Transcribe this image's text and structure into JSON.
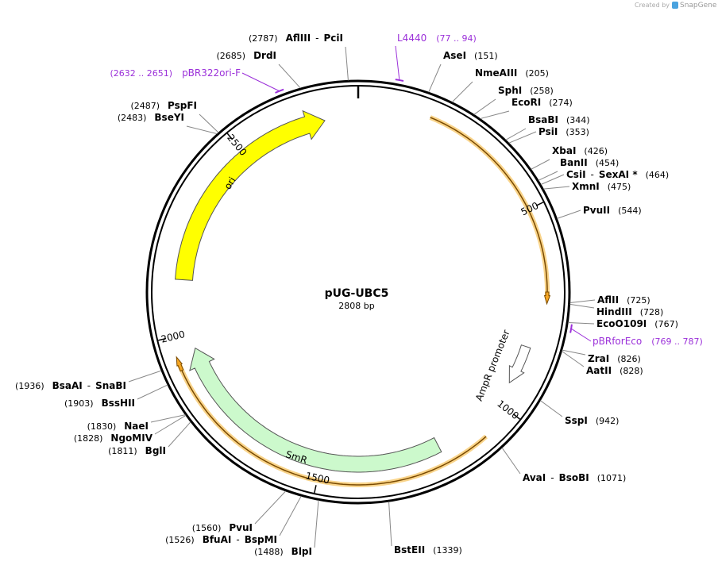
{
  "credit": {
    "prefix": "Created by",
    "brand": "SnapGene"
  },
  "plasmid": {
    "name": "pUG-UBC5",
    "length": "2808 bp"
  },
  "ticks": [
    "500",
    "1000",
    "1500",
    "2000",
    "2500"
  ],
  "features": {
    "ori": "ori",
    "smr": "SmR",
    "promoter": "AmpR promoter"
  },
  "primers": [
    {
      "name": "L4440",
      "range": "(77 .. 94)"
    },
    {
      "name": "pBR322ori-F",
      "range": "(2632 .. 2651)"
    },
    {
      "name": "pBRforEco",
      "range": "(769 .. 787)"
    }
  ],
  "sites": [
    {
      "names": [
        "AseI"
      ],
      "position": "(151)"
    },
    {
      "names": [
        "NmeAIII"
      ],
      "position": "(205)"
    },
    {
      "names": [
        "SphI"
      ],
      "position": "(258)"
    },
    {
      "names": [
        "EcoRI"
      ],
      "position": "(274)"
    },
    {
      "names": [
        "BsaBI"
      ],
      "position": "(344)"
    },
    {
      "names": [
        "PsiI"
      ],
      "position": "(353)"
    },
    {
      "names": [
        "XbaI"
      ],
      "position": "(426)"
    },
    {
      "names": [
        "BanII"
      ],
      "position": "(454)"
    },
    {
      "names": [
        "CsiI",
        "-",
        "SexAI *"
      ],
      "position": "(464)"
    },
    {
      "names": [
        "XmnI"
      ],
      "position": "(475)"
    },
    {
      "names": [
        "PvuII"
      ],
      "position": "(544)"
    },
    {
      "names": [
        "AflII"
      ],
      "position": "(725)"
    },
    {
      "names": [
        "HindIII"
      ],
      "position": "(728)"
    },
    {
      "names": [
        "EcoO109I"
      ],
      "position": "(767)"
    },
    {
      "names": [
        "ZraI"
      ],
      "position": "(826)"
    },
    {
      "names": [
        "AatII"
      ],
      "position": "(828)"
    },
    {
      "names": [
        "SspI"
      ],
      "position": "(942)"
    },
    {
      "names": [
        "AvaI",
        "-",
        "BsoBI"
      ],
      "position": "(1071)"
    },
    {
      "names": [
        "BstEII"
      ],
      "position": "(1339)"
    },
    {
      "names": [
        "BlpI"
      ],
      "position": "(1488)"
    },
    {
      "names": [
        "BfuAI",
        "-",
        "BspMI"
      ],
      "position": "(1526)"
    },
    {
      "names": [
        "PvuI"
      ],
      "position": "(1560)"
    },
    {
      "names": [
        "BglI"
      ],
      "position": "(1811)"
    },
    {
      "names": [
        "NgoMIV"
      ],
      "position": "(1828)"
    },
    {
      "names": [
        "NaeI"
      ],
      "position": "(1830)"
    },
    {
      "names": [
        "BssHII"
      ],
      "position": "(1903)"
    },
    {
      "names": [
        "BsaAI",
        "-",
        "SnaBI"
      ],
      "position": "(1936)"
    },
    {
      "names": [
        "BseYI"
      ],
      "position": "(2483)"
    },
    {
      "names": [
        "PspFI"
      ],
      "position": "(2487)"
    },
    {
      "names": [
        "DrdI"
      ],
      "position": "(2685)"
    },
    {
      "names": [
        "AflIII",
        "-",
        "PciI"
      ],
      "position": "(2787)"
    }
  ]
}
